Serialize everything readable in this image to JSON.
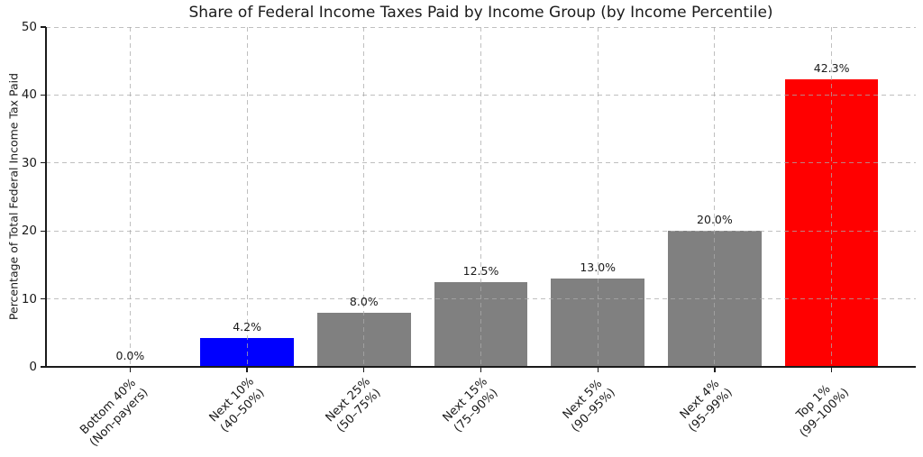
{
  "chart_data": {
    "type": "bar",
    "title": "Share of Federal Income Taxes Paid by Income Group (by Income Percentile)",
    "ylabel": "Percentage of Total Federal Income Tax Paid",
    "xlabel": "",
    "categories": [
      [
        "Bottom 40%",
        "(Non-payers)"
      ],
      [
        "Next 10%",
        "(40–50%)"
      ],
      [
        "Next 25%",
        "(50–75%)"
      ],
      [
        "Next 15%",
        "(75–90%)"
      ],
      [
        "Next 5%",
        "(90–95%)"
      ],
      [
        "Next 4%",
        "(95–99%)"
      ],
      [
        "Top 1%",
        "(99–100%)"
      ]
    ],
    "values": [
      0.0,
      4.2,
      8.0,
      12.5,
      13.0,
      20.0,
      42.3
    ],
    "value_labels": [
      "0.0%",
      "4.2%",
      "8.0%",
      "12.5%",
      "13.0%",
      "20.0%",
      "42.3%"
    ],
    "bar_colors": [
      "#808080",
      "#0000ff",
      "#808080",
      "#808080",
      "#808080",
      "#808080",
      "#ff0000"
    ],
    "ylim": [
      0,
      50
    ],
    "yticks": [
      0,
      10,
      20,
      30,
      40,
      50
    ],
    "grid": true,
    "grid_style": "dashed",
    "legend": null,
    "colors": {
      "default_bar": "#808080",
      "highlight_low": "#0000ff",
      "highlight_high": "#ff0000",
      "text": "#1a1a1a",
      "gridline": "#aaaaaa",
      "background": "#ffffff"
    }
  }
}
